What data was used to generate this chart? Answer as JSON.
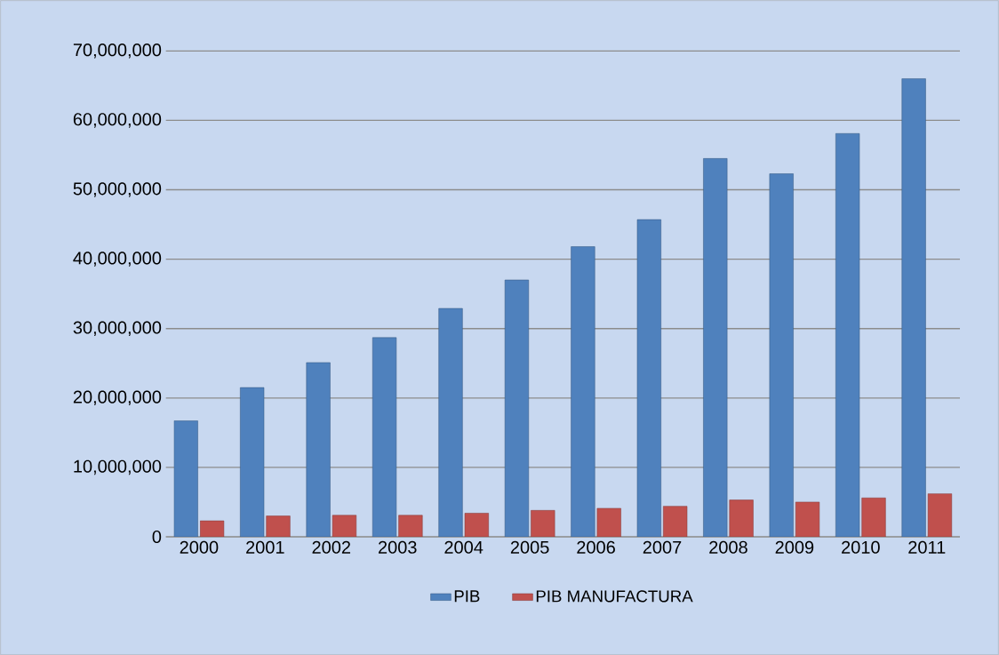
{
  "chart_data": {
    "type": "bar",
    "categories": [
      "2000",
      "2001",
      "2002",
      "2003",
      "2004",
      "2005",
      "2006",
      "2007",
      "2008",
      "2009",
      "2010",
      "2011"
    ],
    "series": [
      {
        "name": "PIB",
        "color": "#4f81bd",
        "values": [
          16700000,
          21500000,
          25100000,
          28700000,
          32900000,
          37000000,
          41800000,
          45700000,
          54500000,
          52300000,
          58100000,
          66000000
        ]
      },
      {
        "name": "PIB MANUFACTURA",
        "color": "#c0504d",
        "values": [
          2300000,
          3000000,
          3100000,
          3100000,
          3400000,
          3800000,
          4100000,
          4400000,
          5300000,
          5000000,
          5600000,
          6200000
        ]
      }
    ],
    "ylim": [
      0,
      70000000
    ],
    "yticks": [
      {
        "value": 0,
        "label": "0"
      },
      {
        "value": 10000000,
        "label": "10,000,000"
      },
      {
        "value": 20000000,
        "label": "20,000,000"
      },
      {
        "value": 30000000,
        "label": "30,000,000"
      },
      {
        "value": 40000000,
        "label": "40,000,000"
      },
      {
        "value": 50000000,
        "label": "50,000,000"
      },
      {
        "value": 60000000,
        "label": "60,000,000"
      },
      {
        "value": 70000000,
        "label": "70,000,000"
      }
    ],
    "grid": "y",
    "legend": "bottom"
  }
}
